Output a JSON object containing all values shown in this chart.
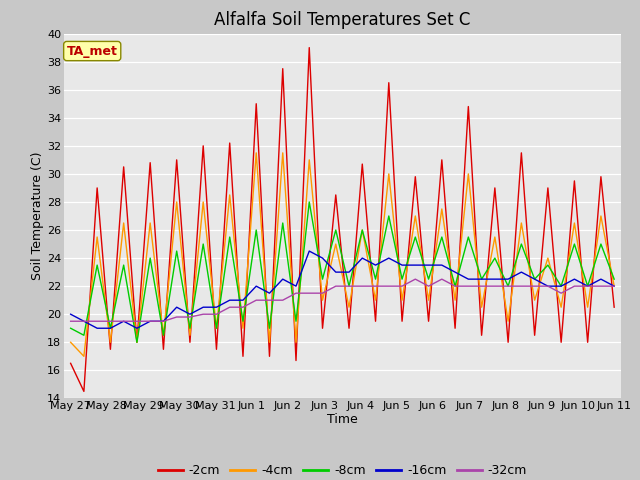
{
  "title": "Alfalfa Soil Temperatures Set C",
  "xlabel": "Time",
  "ylabel": "Soil Temperature (C)",
  "ylim": [
    14,
    40
  ],
  "yticks": [
    14,
    16,
    18,
    20,
    22,
    24,
    26,
    28,
    30,
    32,
    34,
    36,
    38,
    40
  ],
  "xlabels": [
    "May 27",
    "May 28",
    "May 29",
    "May 30",
    "May 31",
    "Jun 1",
    "Jun 2",
    "Jun 3",
    "Jun 4",
    "Jun 5",
    "Jun 6",
    "Jun 7",
    "Jun 8",
    "Jun 9",
    "Jun 10",
    "Jun 11"
  ],
  "fig_bg": "#c8c8c8",
  "plot_bg": "#e8e8e8",
  "grid_color": "#ffffff",
  "annotation_text": "TA_met",
  "annotation_bg": "#ffffaa",
  "annotation_border": "#888800",
  "annotation_text_color": "#bb0000",
  "series_order": [
    "-2cm",
    "-4cm",
    "-8cm",
    "-16cm",
    "-32cm"
  ],
  "series": {
    "-2cm": {
      "color": "#dd0000",
      "values": [
        16.5,
        14.5,
        29.0,
        17.5,
        30.5,
        18.0,
        30.8,
        17.5,
        31.0,
        18.0,
        32.0,
        17.5,
        32.2,
        17.0,
        35.0,
        17.0,
        37.5,
        16.7,
        39.0,
        19.0,
        28.5,
        19.0,
        30.7,
        19.5,
        36.5,
        19.5,
        29.8,
        19.5,
        31.0,
        19.0,
        34.8,
        18.5,
        29.0,
        18.0,
        31.5,
        18.5,
        29.0,
        18.0,
        29.5,
        18.0,
        29.8,
        20.5
      ]
    },
    "-4cm": {
      "color": "#ff9900",
      "values": [
        18.0,
        17.0,
        25.5,
        18.0,
        26.5,
        18.0,
        26.5,
        18.5,
        28.0,
        18.5,
        28.0,
        19.0,
        28.5,
        19.0,
        31.5,
        18.0,
        31.5,
        18.0,
        31.0,
        21.0,
        25.0,
        20.5,
        26.0,
        21.0,
        30.0,
        21.0,
        27.0,
        21.0,
        27.5,
        21.0,
        30.0,
        20.5,
        25.5,
        19.5,
        26.5,
        21.0,
        24.0,
        20.5,
        26.5,
        20.5,
        27.0,
        22.0
      ]
    },
    "-8cm": {
      "color": "#00cc00",
      "values": [
        19.0,
        18.5,
        23.5,
        19.0,
        23.5,
        18.0,
        24.0,
        18.5,
        24.5,
        19.0,
        25.0,
        19.0,
        25.5,
        19.5,
        26.0,
        19.0,
        26.5,
        19.5,
        28.0,
        22.5,
        26.0,
        22.0,
        26.0,
        22.5,
        27.0,
        22.5,
        25.5,
        22.5,
        25.5,
        22.0,
        25.5,
        22.5,
        24.0,
        22.0,
        25.0,
        22.5,
        23.5,
        22.0,
        25.0,
        22.0,
        25.0,
        22.5
      ]
    },
    "-16cm": {
      "color": "#0000cc",
      "values": [
        20.0,
        19.5,
        19.0,
        19.0,
        19.5,
        19.0,
        19.5,
        19.5,
        20.5,
        20.0,
        20.5,
        20.5,
        21.0,
        21.0,
        22.0,
        21.5,
        22.5,
        22.0,
        24.5,
        24.0,
        23.0,
        23.0,
        24.0,
        23.5,
        24.0,
        23.5,
        23.5,
        23.5,
        23.5,
        23.0,
        22.5,
        22.5,
        22.5,
        22.5,
        23.0,
        22.5,
        22.0,
        22.0,
        22.5,
        22.0,
        22.5,
        22.0
      ]
    },
    "-32cm": {
      "color": "#aa44aa",
      "values": [
        19.5,
        19.5,
        19.5,
        19.5,
        19.5,
        19.5,
        19.5,
        19.5,
        19.8,
        19.8,
        20.0,
        20.0,
        20.5,
        20.5,
        21.0,
        21.0,
        21.0,
        21.5,
        21.5,
        21.5,
        22.0,
        22.0,
        22.0,
        22.0,
        22.0,
        22.0,
        22.5,
        22.0,
        22.5,
        22.0,
        22.0,
        22.0,
        22.0,
        22.0,
        22.0,
        22.0,
        22.0,
        21.5,
        22.0,
        22.0,
        22.0,
        22.0
      ]
    }
  },
  "n_points": 42,
  "linewidth": 1.0,
  "title_fontsize": 12,
  "axis_label_fontsize": 9,
  "tick_fontsize": 8,
  "legend_fontsize": 9
}
